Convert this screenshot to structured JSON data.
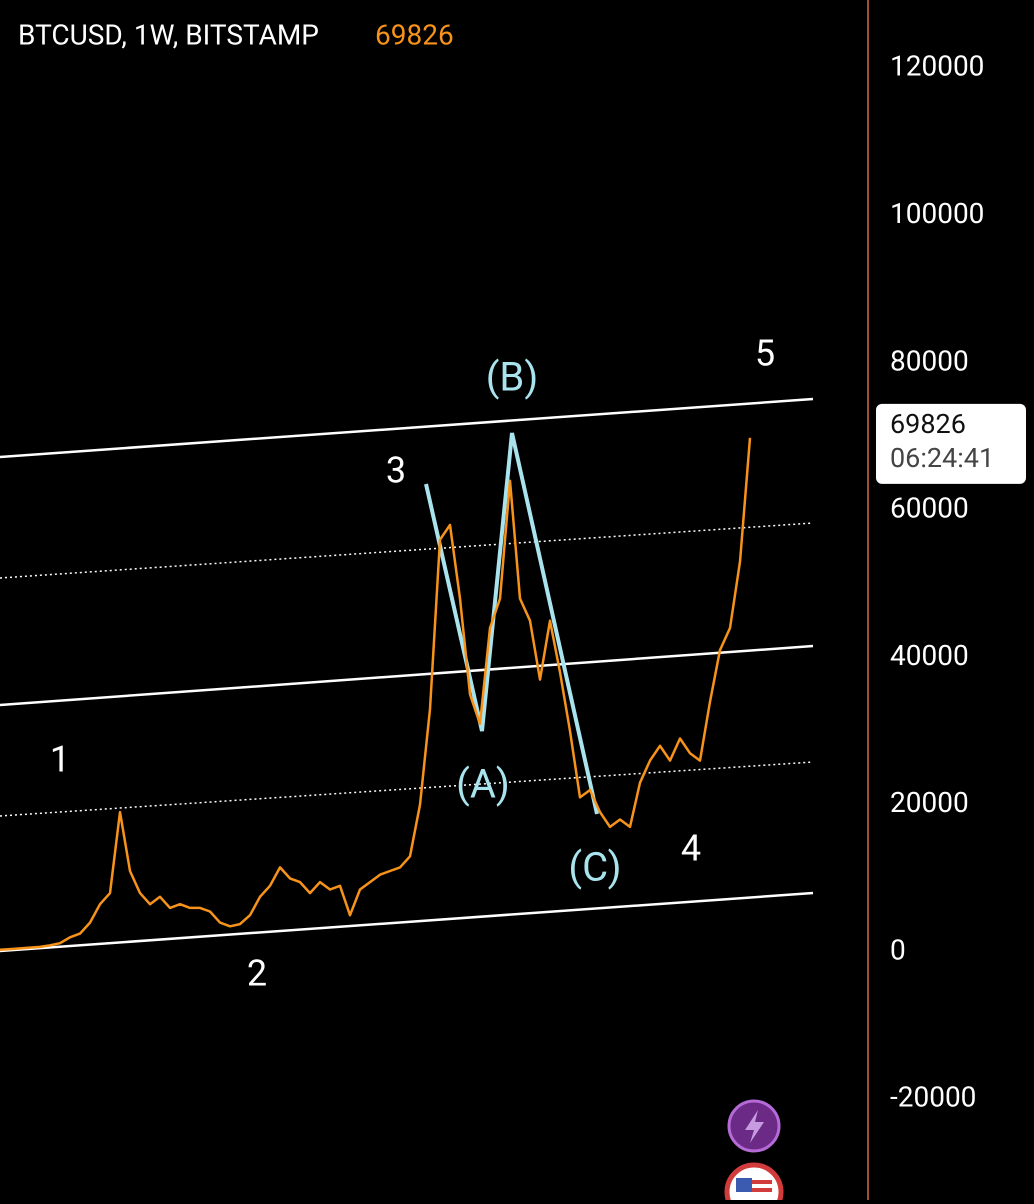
{
  "chart_data": {
    "type": "line",
    "title": "BTCUSD, 1W, BITSTAMP",
    "last_price": 69826,
    "countdown": "06:24:41",
    "categories": [
      null,
      null,
      null,
      null,
      null,
      null,
      null,
      null,
      null,
      null,
      null,
      null,
      null,
      null,
      null,
      null,
      null,
      null,
      null,
      null,
      null,
      null,
      null,
      null,
      null,
      null,
      null,
      null,
      null,
      null,
      null,
      null,
      null,
      null,
      null,
      null,
      null,
      null,
      null,
      null,
      null,
      null,
      null,
      null,
      null,
      null,
      null,
      null,
      null,
      null,
      null,
      null,
      null,
      null,
      null,
      null,
      null,
      null,
      null,
      null,
      null,
      null,
      null,
      null,
      null,
      null,
      null,
      null,
      null,
      null,
      null,
      null,
      null,
      null,
      null,
      null
    ],
    "values": [
      300,
      400,
      500,
      600,
      700,
      900,
      1200,
      2000,
      2500,
      4000,
      6500,
      8000,
      19000,
      11000,
      8000,
      6500,
      7500,
      6000,
      6500,
      6000,
      6000,
      5500,
      4000,
      3500,
      3800,
      5000,
      7500,
      9000,
      11500,
      10000,
      9500,
      8000,
      9500,
      8500,
      9000,
      5000,
      8500,
      9500,
      10500,
      11000,
      11500,
      13000,
      20000,
      33000,
      56000,
      58000,
      48000,
      35000,
      31000,
      44000,
      48000,
      64000,
      48000,
      45000,
      37000,
      45000,
      38000,
      30000,
      21000,
      22000,
      19000,
      17000,
      18000,
      17000,
      23000,
      26000,
      28000,
      26000,
      29000,
      27000,
      26000,
      34000,
      41000,
      44000,
      53000,
      69826
    ],
    "color": "#f7931a",
    "ylim": [
      -33670,
      129280
    ],
    "yticks": [
      -20000,
      0,
      20000,
      40000,
      60000,
      80000,
      100000,
      120000
    ],
    "annotations": [
      "1",
      "2",
      "3",
      "4",
      "5",
      "(A)",
      "(B)",
      "(C)"
    ]
  }
}
